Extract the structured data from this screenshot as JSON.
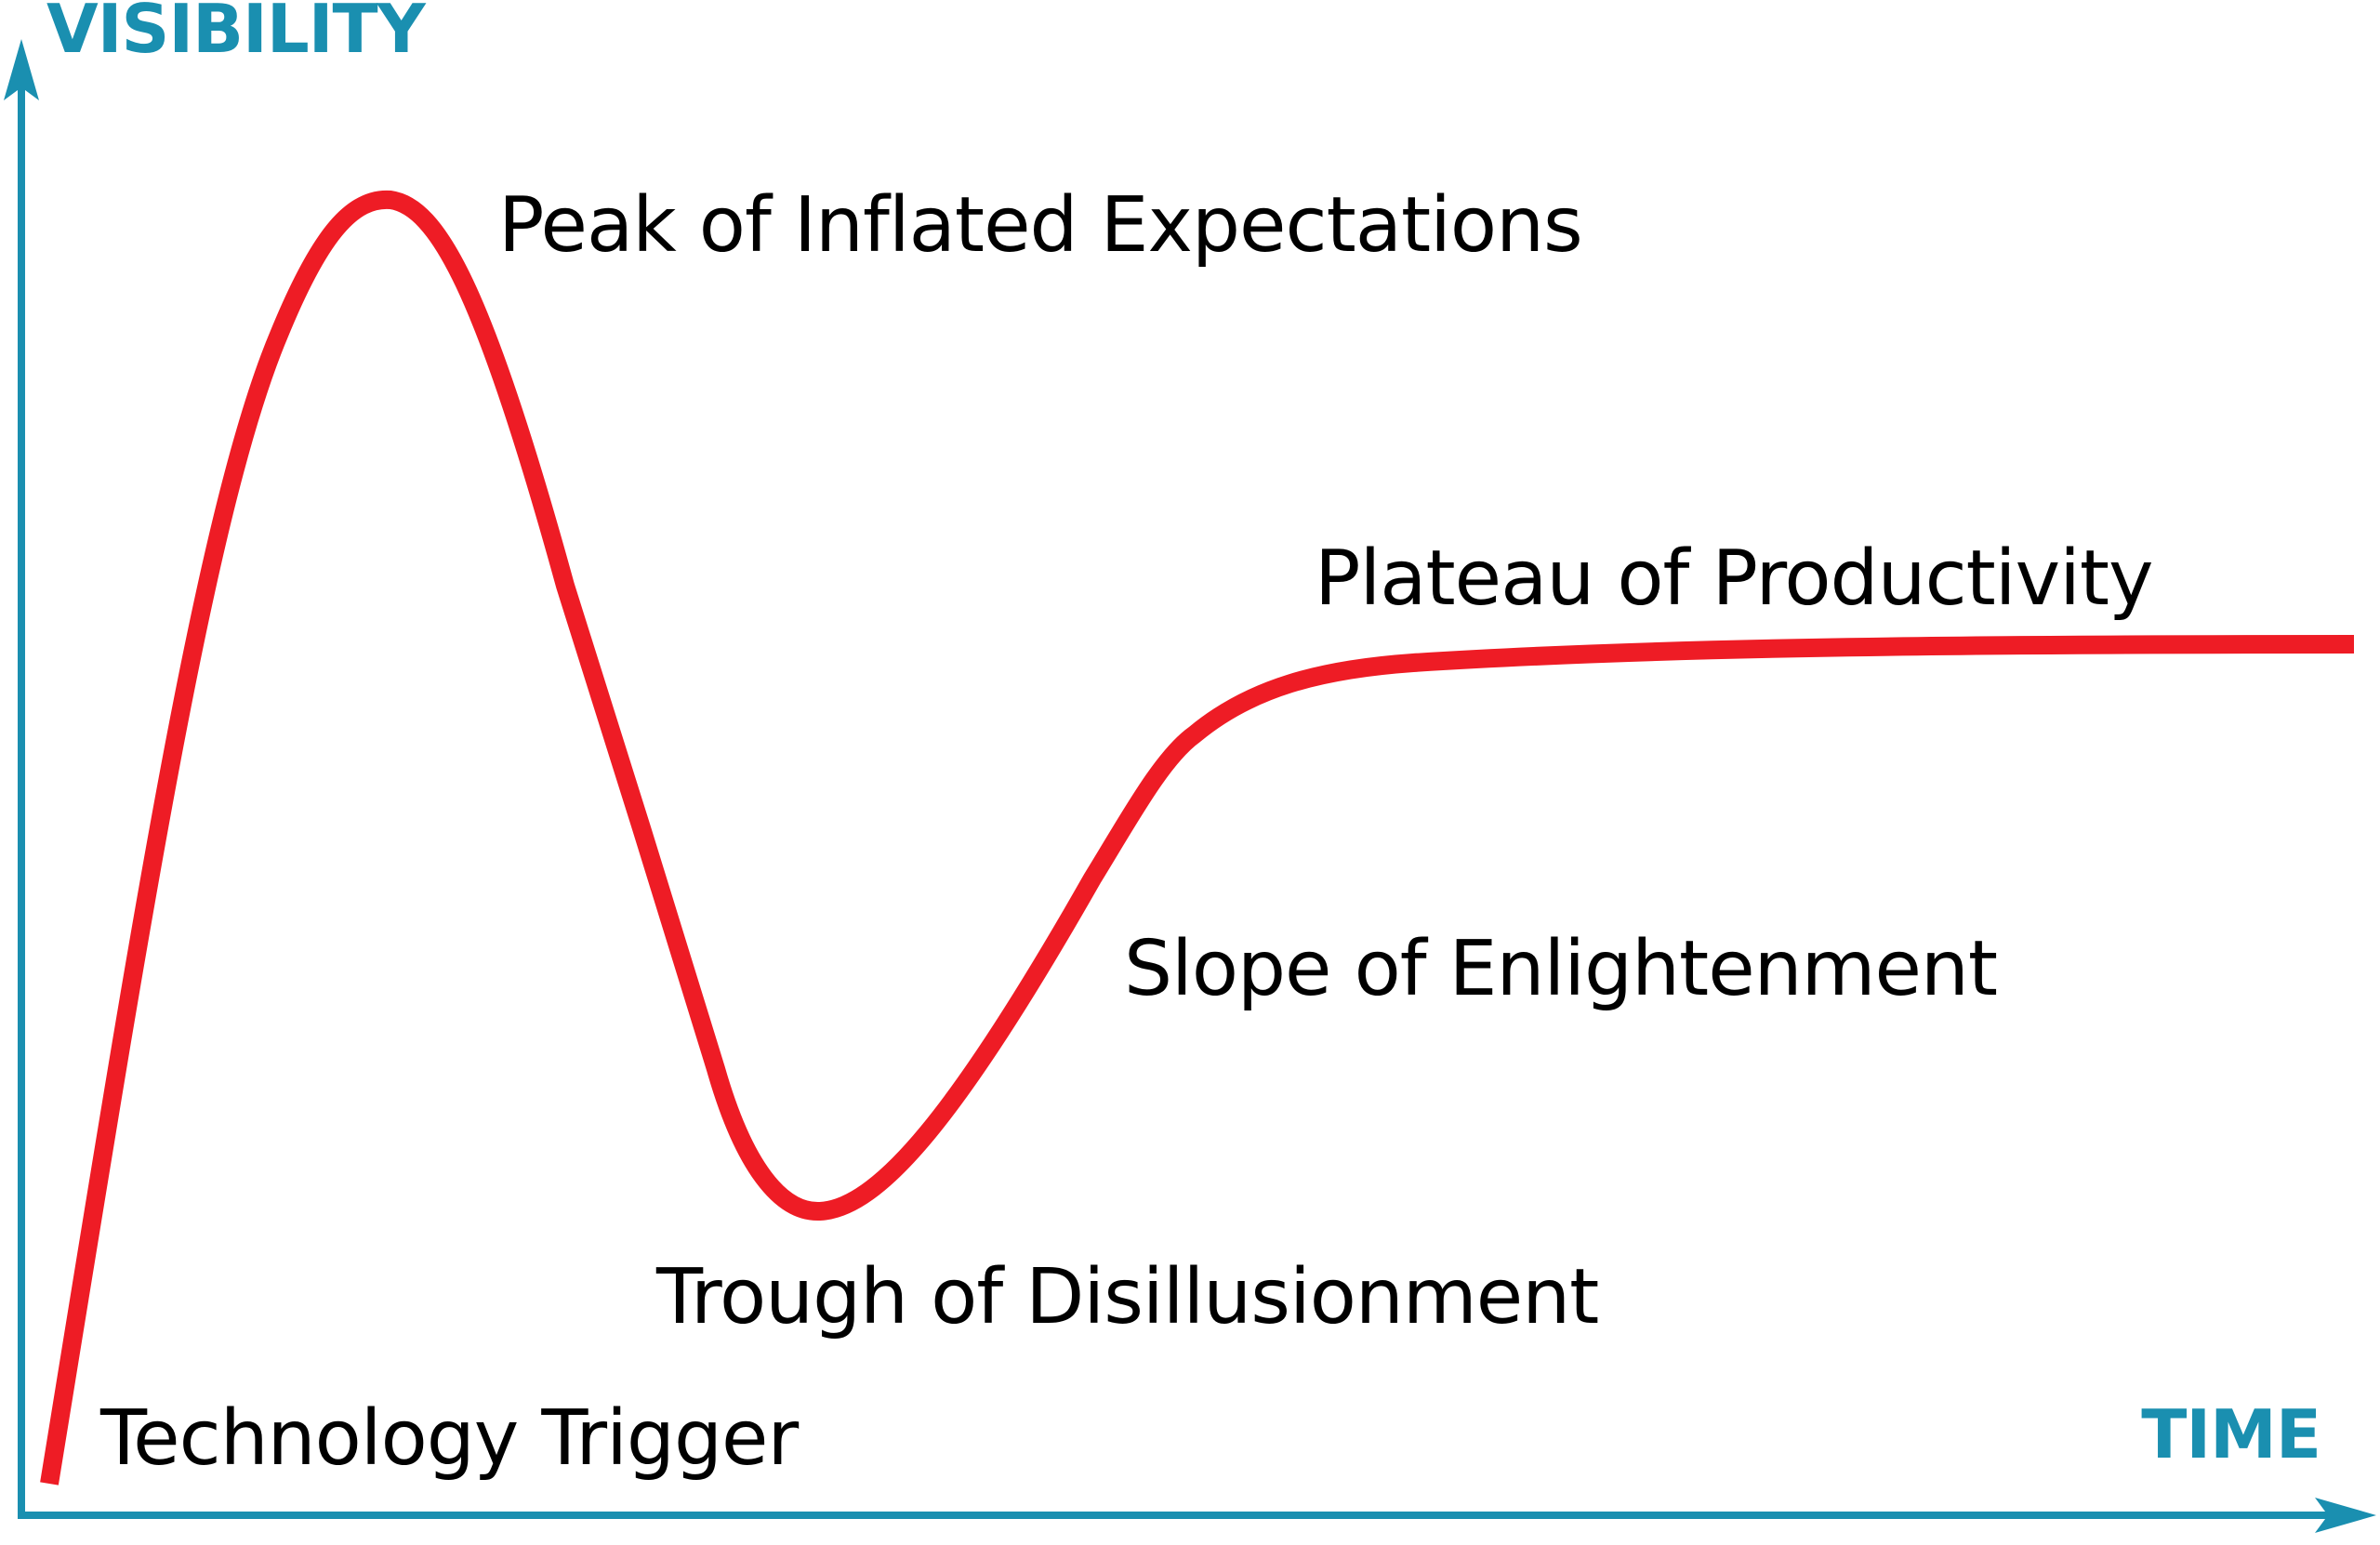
{
  "colors": {
    "axis": "#1a8fb0",
    "curve": "#ee1c25",
    "text": "#000000",
    "background": "#ffffff"
  },
  "axes": {
    "y_label": "VISIBILITY",
    "x_label": "TIME"
  },
  "phases": [
    {
      "name": "technology-trigger",
      "label": "Technology Trigger"
    },
    {
      "name": "peak-of-inflated-expectations",
      "label": "Peak of Inflated Expectations"
    },
    {
      "name": "trough-of-disillusionment",
      "label": "Trough of Disillusionment"
    },
    {
      "name": "slope-of-enlightenment",
      "label": "Slope of Enlightenment"
    },
    {
      "name": "plateau-of-productivity",
      "label": "Plateau of Productivity"
    }
  ]
}
